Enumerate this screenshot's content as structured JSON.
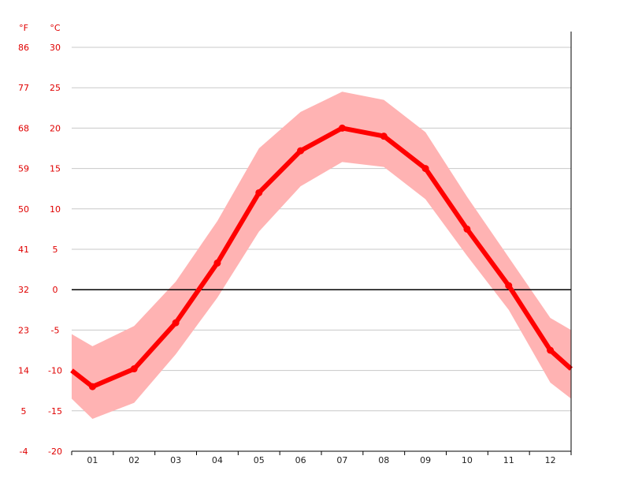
{
  "chart_data": {
    "type": "line",
    "unit_labels": {
      "fahrenheit": "°F",
      "celsius": "°C"
    },
    "categories": [
      "01",
      "02",
      "03",
      "04",
      "05",
      "06",
      "07",
      "08",
      "09",
      "10",
      "11",
      "12"
    ],
    "series": [
      {
        "values": [
          -12.0,
          -9.8,
          -4.1,
          3.3,
          12.0,
          17.2,
          20.0,
          19.0,
          15.0,
          7.5,
          0.5,
          -7.5
        ]
      }
    ],
    "band": {
      "upper": [
        -7.0,
        -4.5,
        1.0,
        8.5,
        17.5,
        22.0,
        24.5,
        23.5,
        19.5,
        11.5,
        4.0,
        -3.5
      ],
      "lower": [
        -16.0,
        -14.0,
        -8.0,
        -1.0,
        7.2,
        12.8,
        15.8,
        15.2,
        11.2,
        4.2,
        -2.5,
        -11.5
      ]
    },
    "edge_values": {
      "start": -10.0,
      "end": -9.8
    },
    "edge_band": {
      "start_upper": -5.5,
      "start_lower": -13.5,
      "end_upper": -5.0,
      "end_lower": -13.5
    },
    "y_ticks_celsius": [
      "30",
      "25",
      "20",
      "15",
      "10",
      "5",
      "0",
      "-5",
      "-10",
      "-15",
      "-20"
    ],
    "y_ticks_fahrenheit": [
      "86",
      "77",
      "68",
      "59",
      "50",
      "41",
      "32",
      "23",
      "14",
      "5",
      "-4"
    ],
    "ylim": [
      -20,
      30
    ],
    "grid": true,
    "colors": {
      "line": "#ff0000",
      "band": "#ffb3b3",
      "tick_text": "#e00000",
      "grid": "#c8c8c8",
      "zero_line": "#000000"
    }
  }
}
